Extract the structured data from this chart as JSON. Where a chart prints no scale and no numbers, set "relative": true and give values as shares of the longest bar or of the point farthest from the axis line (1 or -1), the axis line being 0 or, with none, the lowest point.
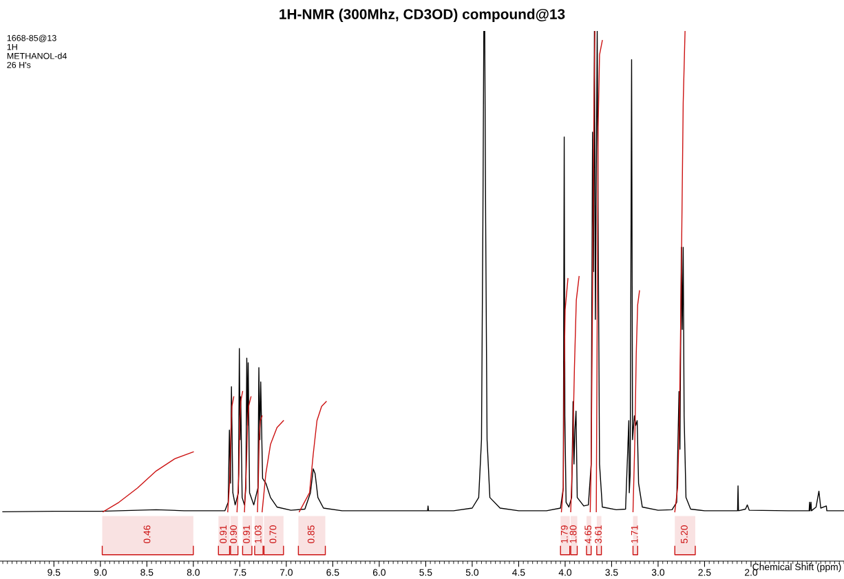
{
  "chart_data": {
    "type": "line",
    "relative": true,
    "title": "1H-NMR (300Mhz, CD3OD) compound@13",
    "xlabel": "Chemical Shift (ppm)",
    "annotations": [
      "1668-85@13",
      "1H",
      "METHANOL-d4",
      "26 H's"
    ],
    "xlim": [
      10.08,
      1.0
    ],
    "xticks": [
      9.5,
      {
        "value": 9.0,
        "label": "9.0"
      },
      8.5,
      {
        "value": 8.0,
        "label": "8.0"
      },
      7.5,
      {
        "value": 7.0,
        "label": "7.0"
      },
      6.5,
      {
        "value": 6.0,
        "label": "6.0"
      },
      5.5,
      {
        "value": 5.0,
        "label": "5.0"
      },
      4.5,
      {
        "value": 4.0,
        "label": "4.0"
      },
      3.5,
      {
        "value": 3.0,
        "label": "3.0"
      },
      2.5,
      {
        "value": 2.0,
        "label": "2.0"
      }
    ],
    "grid": false,
    "legend": false,
    "line_style": "solid",
    "marker": "none",
    "series": [
      {
        "color": "#000000",
        "x": [
          10.05,
          9.5,
          9.0,
          8.6,
          8.4,
          8.1,
          7.8,
          7.66,
          7.625,
          7.612,
          7.6,
          7.59,
          7.575,
          7.55,
          7.515,
          7.505,
          7.497,
          7.49,
          7.475,
          7.45,
          7.435,
          7.425,
          7.417,
          7.41,
          7.395,
          7.35,
          7.305,
          7.295,
          7.285,
          7.275,
          7.255,
          7.22,
          7.17,
          7.1,
          6.95,
          6.8,
          6.74,
          6.71,
          6.69,
          6.66,
          6.6,
          6.4,
          6.0,
          5.48,
          5.475,
          5.47,
          5.2,
          5.0,
          4.93,
          4.9,
          4.885,
          4.875,
          4.865,
          4.855,
          4.84,
          4.81,
          4.7,
          4.5,
          4.2,
          4.05,
          4.02,
          4.01,
          4.003,
          3.99,
          3.96,
          3.93,
          3.915,
          3.905,
          3.895,
          3.883,
          3.87,
          3.8,
          3.75,
          3.72,
          3.705,
          3.695,
          3.685,
          3.675,
          3.665,
          3.655,
          3.645,
          3.63,
          3.6,
          3.45,
          3.35,
          3.315,
          3.31,
          3.3,
          3.285,
          3.275,
          3.255,
          3.24,
          3.225,
          3.21,
          3.17,
          3.0,
          2.85,
          2.8,
          2.775,
          2.765,
          2.75,
          2.74,
          2.73,
          2.72,
          2.7,
          2.65,
          2.5,
          2.2,
          2.145,
          2.14,
          2.135,
          2.06,
          2.04,
          2.02,
          1.6,
          1.375,
          1.37,
          1.365,
          1.355,
          1.35,
          1.3,
          1.27,
          1.25,
          1.19,
          1.185,
          1.0
        ],
        "values": [
          0.093,
          0.094,
          0.094,
          0.096,
          0.097,
          0.095,
          0.095,
          0.095,
          0.111,
          0.247,
          0.147,
          0.329,
          0.129,
          0.106,
          0.129,
          0.401,
          0.229,
          0.31,
          0.12,
          0.106,
          0.138,
          0.383,
          0.256,
          0.374,
          0.129,
          0.106,
          0.138,
          0.365,
          0.229,
          0.338,
          0.156,
          0.147,
          0.12,
          0.102,
          0.096,
          0.098,
          0.129,
          0.174,
          0.165,
          0.12,
          0.1,
          0.095,
          0.095,
          0.095,
          0.104,
          0.095,
          0.095,
          0.1,
          0.12,
          0.229,
          0.637,
          1,
          1,
          0.637,
          0.229,
          0.12,
          0.1,
          0.095,
          0.095,
          0.1,
          0.138,
          0.8,
          0.274,
          0.111,
          0.102,
          0.12,
          0.301,
          0.183,
          0.247,
          0.283,
          0.12,
          0.104,
          0.106,
          0.183,
          0.809,
          0.546,
          1,
          0.456,
          0.728,
          1,
          0.637,
          0.183,
          0.102,
          0.097,
          0.098,
          0.265,
          0.129,
          0.165,
          0.946,
          0.229,
          0.274,
          0.256,
          0.265,
          0.147,
          0.102,
          0.096,
          0.097,
          0.111,
          0.32,
          0.211,
          0.592,
          0.437,
          0.592,
          0.274,
          0.12,
          0.098,
          0.095,
          0.095,
          0.095,
          0.142,
          0.095,
          0.098,
          0.106,
          0.096,
          0.095,
          0.095,
          0.111,
          0.095,
          0.111,
          0.095,
          0.102,
          0.132,
          0.1,
          0.104,
          0.095,
          0.095
        ]
      },
      {
        "color": "#cc1111",
        "x": [
          8.97,
          8.8,
          8.6,
          8.4,
          8.2,
          8.0
        ],
        "values": [
          0.093,
          0.111,
          0.138,
          0.17,
          0.193,
          0.206
        ]
      },
      {
        "color": "#cc1111",
        "x": [
          7.63,
          7.61,
          7.595,
          7.585,
          7.565
        ],
        "values": [
          0.093,
          0.147,
          0.247,
          0.292,
          0.31
        ]
      },
      {
        "color": "#cc1111",
        "x": [
          7.53,
          7.51,
          7.5,
          7.49,
          7.47
        ],
        "values": [
          0.093,
          0.165,
          0.265,
          0.301,
          0.32
        ]
      },
      {
        "color": "#cc1111",
        "x": [
          7.45,
          7.43,
          7.415,
          7.405,
          7.38
        ],
        "values": [
          0.093,
          0.174,
          0.265,
          0.292,
          0.31
        ]
      },
      {
        "color": "#cc1111",
        "x": [
          7.31,
          7.3,
          7.29,
          7.28,
          7.26
        ],
        "values": [
          0.093,
          0.156,
          0.238,
          0.265,
          0.274
        ]
      },
      {
        "color": "#cc1111",
        "x": [
          7.26,
          7.22,
          7.17,
          7.1,
          7.03
        ],
        "values": [
          0.093,
          0.165,
          0.22,
          0.252,
          0.265
        ]
      },
      {
        "color": "#cc1111",
        "x": [
          6.86,
          6.75,
          6.71,
          6.67,
          6.62,
          6.57
        ],
        "values": [
          0.093,
          0.129,
          0.202,
          0.265,
          0.292,
          0.301
        ]
      },
      {
        "color": "#cc1111",
        "x": [
          4.04,
          4.02,
          4.01,
          4.0,
          3.97
        ],
        "values": [
          0.093,
          0.138,
          0.365,
          0.474,
          0.533
        ]
      },
      {
        "color": "#cc1111",
        "x": [
          3.94,
          3.92,
          3.9,
          3.88,
          3.85
        ],
        "values": [
          0.093,
          0.202,
          0.365,
          0.492,
          0.537
        ]
      },
      {
        "color": "#cc1111",
        "x": [
          3.73,
          3.72,
          3.705,
          3.69,
          3.68
        ],
        "values": [
          0.093,
          0.183,
          0.501,
          0.864,
          1
        ]
      },
      {
        "color": "#cc1111",
        "x": [
          3.665,
          3.655,
          3.645,
          3.63,
          3.6
        ],
        "values": [
          0.093,
          0.456,
          0.819,
          0.955,
          0.982
        ]
      },
      {
        "color": "#cc1111",
        "x": [
          3.27,
          3.25,
          3.235,
          3.22,
          3.2
        ],
        "values": [
          0.093,
          0.229,
          0.392,
          0.483,
          0.51
        ]
      },
      {
        "color": "#cc1111",
        "x": [
          2.82,
          2.79,
          2.77,
          2.75,
          2.73,
          2.71
        ],
        "values": [
          0.093,
          0.138,
          0.274,
          0.546,
          0.864,
          1
        ]
      }
    ],
    "bands": [
      {
        "axis": "x",
        "from": 8.98,
        "to": 8.0,
        "label": "0.46",
        "color": "#cc1111"
      },
      {
        "axis": "x",
        "from": 7.73,
        "to": 7.61,
        "label": "0.91",
        "color": "#cc1111"
      },
      {
        "axis": "x",
        "from": 7.6,
        "to": 7.52,
        "label": "0.90",
        "color": "#cc1111"
      },
      {
        "axis": "x",
        "from": 7.47,
        "to": 7.37,
        "label": "0.91",
        "color": "#cc1111"
      },
      {
        "axis": "x",
        "from": 7.34,
        "to": 7.25,
        "label": "1.03",
        "color": "#cc1111"
      },
      {
        "axis": "x",
        "from": 7.24,
        "to": 7.03,
        "label": "0.70",
        "color": "#cc1111"
      },
      {
        "axis": "x",
        "from": 6.87,
        "to": 6.58,
        "label": "0.85",
        "color": "#cc1111"
      },
      {
        "axis": "x",
        "from": 4.05,
        "to": 3.95,
        "label": "1.79",
        "color": "#cc1111"
      },
      {
        "axis": "x",
        "from": 3.94,
        "to": 3.87,
        "label": "1.80",
        "color": "#cc1111"
      },
      {
        "axis": "x",
        "from": 3.77,
        "to": 3.72,
        "label": "4.65",
        "color": "#cc1111"
      },
      {
        "axis": "x",
        "from": 3.66,
        "to": 3.61,
        "label": "3.61",
        "color": "#cc1111"
      },
      {
        "axis": "x",
        "from": 3.27,
        "to": 3.22,
        "label": "1.71",
        "color": "#cc1111"
      },
      {
        "axis": "x",
        "from": 2.82,
        "to": 2.6,
        "label": "5.20",
        "color": "#cc1111"
      }
    ]
  }
}
